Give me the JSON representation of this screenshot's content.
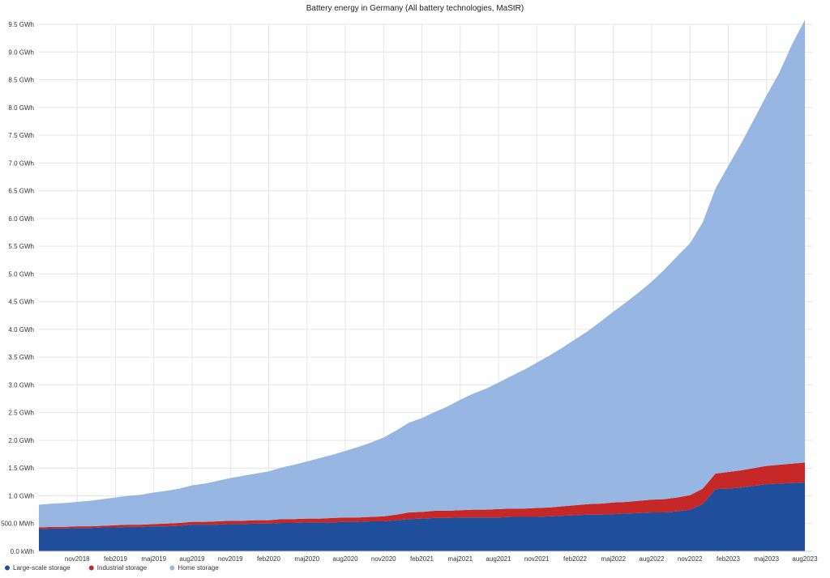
{
  "chart_data": {
    "type": "area",
    "stacked": true,
    "title": "Battery energy in Germany (All battery technologies, MaStR)",
    "xlabel": "",
    "ylabel": "",
    "ylim": [
      0,
      9.5
    ],
    "y_unit": "GWh",
    "y_ticks": [
      {
        "value": 0.0,
        "label": "0.0 kWh"
      },
      {
        "value": 0.5,
        "label": "500.0 MWh"
      },
      {
        "value": 1.0,
        "label": "1.0 GWh"
      },
      {
        "value": 1.5,
        "label": "1.5 GWh"
      },
      {
        "value": 2.0,
        "label": "2.0 GWh"
      },
      {
        "value": 2.5,
        "label": "2.5 GWh"
      },
      {
        "value": 3.0,
        "label": "3.0 GWh"
      },
      {
        "value": 3.5,
        "label": "3.5 GWh"
      },
      {
        "value": 4.0,
        "label": "4.0 GWh"
      },
      {
        "value": 4.5,
        "label": "4.5 GWh"
      },
      {
        "value": 5.0,
        "label": "5.0 GWh"
      },
      {
        "value": 5.5,
        "label": "5.5 GWh"
      },
      {
        "value": 6.0,
        "label": "6.0 GWh"
      },
      {
        "value": 6.5,
        "label": "6.5 GWh"
      },
      {
        "value": 7.0,
        "label": "7.0 GWh"
      },
      {
        "value": 7.5,
        "label": "7.5 GWh"
      },
      {
        "value": 8.0,
        "label": "8.0 GWh"
      },
      {
        "value": 8.5,
        "label": "8.5 GWh"
      },
      {
        "value": 9.0,
        "label": "9.0 GWh"
      },
      {
        "value": 9.5,
        "label": "9.5 GWh"
      }
    ],
    "x_tick_labels": [
      "nov2018",
      "feb2019",
      "maj2019",
      "aug2019",
      "nov2019",
      "feb2020",
      "maj2020",
      "aug2020",
      "nov2020",
      "feb2021",
      "maj2021",
      "aug2021",
      "nov2021",
      "feb2022",
      "maj2022",
      "aug2022",
      "nov2022",
      "feb2023",
      "maj2023",
      "aug2023"
    ],
    "x": [
      "aug2018",
      "sep2018",
      "okt2018",
      "nov2018",
      "dec2018",
      "jan2019",
      "feb2019",
      "mar2019",
      "apr2019",
      "maj2019",
      "jun2019",
      "jul2019",
      "aug2019",
      "sep2019",
      "okt2019",
      "nov2019",
      "dec2019",
      "jan2020",
      "feb2020",
      "mar2020",
      "apr2020",
      "maj2020",
      "jun2020",
      "jul2020",
      "aug2020",
      "sep2020",
      "okt2020",
      "nov2020",
      "dec2020",
      "jan2021",
      "feb2021",
      "mar2021",
      "apr2021",
      "maj2021",
      "jun2021",
      "jul2021",
      "aug2021",
      "sep2021",
      "okt2021",
      "nov2021",
      "dec2021",
      "jan2022",
      "feb2022",
      "mar2022",
      "apr2022",
      "maj2022",
      "jun2022",
      "jul2022",
      "aug2022",
      "sep2022",
      "okt2022",
      "nov2022",
      "dec2022",
      "jan2023",
      "feb2023",
      "mar2023",
      "apr2023",
      "maj2023",
      "jun2023",
      "jul2023",
      "aug2023"
    ],
    "series": [
      {
        "name": "Large-scale storage",
        "color": "#1f4e9c",
        "values": [
          0.4,
          0.41,
          0.41,
          0.42,
          0.42,
          0.43,
          0.43,
          0.44,
          0.44,
          0.45,
          0.45,
          0.46,
          0.48,
          0.48,
          0.48,
          0.49,
          0.49,
          0.5,
          0.5,
          0.51,
          0.51,
          0.52,
          0.52,
          0.52,
          0.53,
          0.53,
          0.54,
          0.54,
          0.56,
          0.58,
          0.59,
          0.6,
          0.6,
          0.61,
          0.61,
          0.61,
          0.61,
          0.62,
          0.62,
          0.62,
          0.63,
          0.64,
          0.65,
          0.66,
          0.66,
          0.67,
          0.68,
          0.69,
          0.7,
          0.7,
          0.72,
          0.75,
          0.85,
          1.12,
          1.13,
          1.15,
          1.18,
          1.21,
          1.22,
          1.23,
          1.24
        ]
      },
      {
        "name": "Industrial storage",
        "color": "#c62828",
        "values": [
          0.03,
          0.03,
          0.03,
          0.03,
          0.03,
          0.03,
          0.04,
          0.04,
          0.04,
          0.04,
          0.05,
          0.05,
          0.05,
          0.05,
          0.06,
          0.06,
          0.06,
          0.06,
          0.06,
          0.07,
          0.07,
          0.07,
          0.07,
          0.08,
          0.08,
          0.08,
          0.08,
          0.09,
          0.1,
          0.12,
          0.12,
          0.13,
          0.13,
          0.13,
          0.14,
          0.14,
          0.15,
          0.15,
          0.15,
          0.16,
          0.16,
          0.17,
          0.18,
          0.19,
          0.2,
          0.21,
          0.21,
          0.22,
          0.23,
          0.24,
          0.25,
          0.26,
          0.28,
          0.28,
          0.3,
          0.31,
          0.32,
          0.33,
          0.34,
          0.35,
          0.36
        ]
      },
      {
        "name": "Home storage",
        "color": "#97b7e2",
        "values": [
          0.41,
          0.42,
          0.43,
          0.44,
          0.46,
          0.48,
          0.5,
          0.52,
          0.54,
          0.57,
          0.59,
          0.62,
          0.66,
          0.69,
          0.73,
          0.77,
          0.81,
          0.84,
          0.88,
          0.93,
          0.98,
          1.03,
          1.09,
          1.14,
          1.2,
          1.27,
          1.34,
          1.42,
          1.52,
          1.62,
          1.69,
          1.78,
          1.88,
          1.99,
          2.09,
          2.18,
          2.28,
          2.39,
          2.5,
          2.62,
          2.74,
          2.86,
          2.99,
          3.12,
          3.28,
          3.44,
          3.6,
          3.76,
          3.93,
          4.14,
          4.35,
          4.54,
          4.8,
          5.14,
          5.52,
          5.89,
          6.28,
          6.68,
          7.07,
          7.56,
          7.98
        ]
      }
    ],
    "legend_position": "bottom-left",
    "grid": true
  }
}
